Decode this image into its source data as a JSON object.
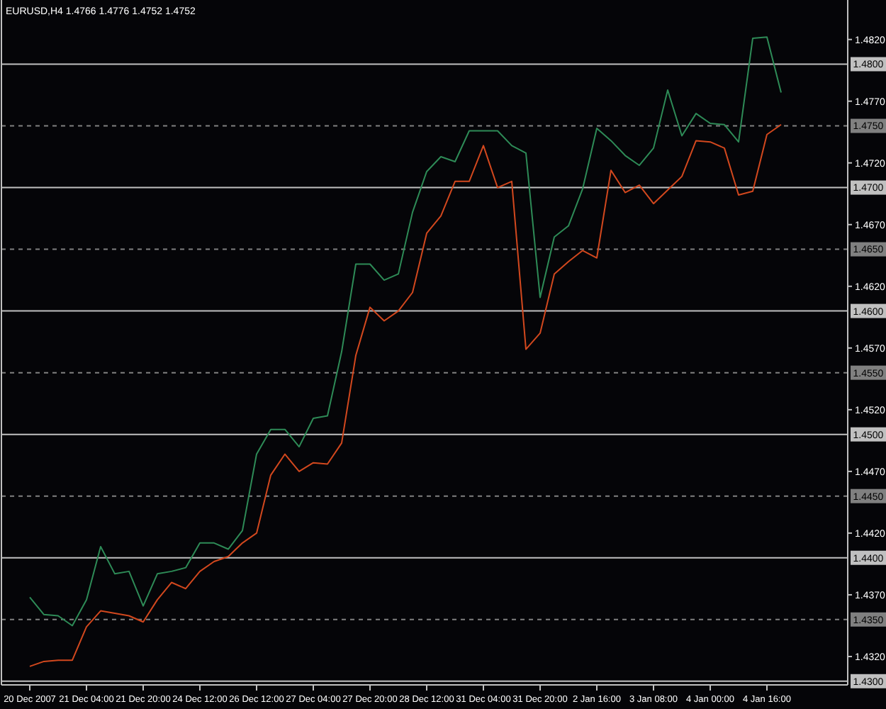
{
  "chart_data": {
    "type": "line",
    "title": "EURUSD,H4 1.4766 1.4776 1.4752 1.4752",
    "categories": [
      "20 Dec 2007",
      null,
      null,
      null,
      "21 Dec 04:00",
      null,
      null,
      null,
      "21 Dec 20:00",
      null,
      null,
      null,
      "24 Dec 12:00",
      null,
      null,
      null,
      "26 Dec 12:00",
      null,
      null,
      null,
      "27 Dec 04:00",
      null,
      null,
      null,
      "27 Dec 20:00",
      null,
      null,
      null,
      "28 Dec 12:00",
      null,
      null,
      null,
      "31 Dec 04:00",
      null,
      null,
      null,
      "31 Dec 20:00",
      null,
      null,
      null,
      "2 Jan 16:00",
      null,
      null,
      null,
      "3 Jan 08:00",
      null,
      null,
      null,
      "4 Jan 00:00",
      null,
      null,
      null,
      "4 Jan 16:00",
      null
    ],
    "series": [
      {
        "color": "#2e8b57",
        "values": [
          1.4368,
          1.4354,
          1.4353,
          1.4345,
          1.4366,
          1.4409,
          1.4387,
          1.4389,
          1.4361,
          1.4387,
          1.4389,
          1.4392,
          1.4412,
          1.4412,
          1.4407,
          1.4422,
          1.4484,
          1.4504,
          1.4504,
          1.449,
          1.4513,
          1.4515,
          1.4567,
          1.4638,
          1.4638,
          1.4625,
          1.463,
          1.468,
          1.4713,
          1.4725,
          1.4721,
          1.4746,
          1.4746,
          1.4746,
          1.4734,
          1.4728,
          1.4611,
          1.466,
          1.4669,
          1.4699,
          1.4748,
          1.4738,
          1.4726,
          1.4718,
          1.4732,
          1.4779,
          1.4742,
          1.476,
          1.4752,
          1.4751,
          1.4737,
          1.4821,
          1.4822,
          1.4777
        ]
      },
      {
        "color": "#d2481e",
        "values": [
          1.4312,
          1.4316,
          1.4317,
          1.4317,
          1.4344,
          1.4357,
          1.4355,
          1.4353,
          1.4348,
          1.4366,
          1.438,
          1.4375,
          1.4389,
          1.4397,
          1.4401,
          1.4412,
          1.442,
          1.4467,
          1.4484,
          1.447,
          1.4477,
          1.4476,
          1.4493,
          1.4564,
          1.4603,
          1.4592,
          1.46,
          1.4615,
          1.4663,
          1.4677,
          1.4705,
          1.4705,
          1.4734,
          1.47,
          1.4705,
          1.4569,
          1.4582,
          1.463,
          1.464,
          1.4649,
          1.4643,
          1.4714,
          1.4696,
          1.4702,
          1.4687,
          1.4698,
          1.4709,
          1.4738,
          1.4737,
          1.4732,
          1.4694,
          1.4697,
          1.4743,
          1.4751
        ]
      }
    ],
    "ylim": [
      1.4297,
      1.4852
    ],
    "yticks": [
      {
        "value": 1.432,
        "label": "1.4320"
      },
      {
        "value": 1.437,
        "label": "1.4370"
      },
      {
        "value": 1.442,
        "label": "1.4420"
      },
      {
        "value": 1.447,
        "label": "1.4470"
      },
      {
        "value": 1.452,
        "label": "1.4520"
      },
      {
        "value": 1.457,
        "label": "1.4570"
      },
      {
        "value": 1.462,
        "label": "1.4620"
      },
      {
        "value": 1.467,
        "label": "1.4670"
      },
      {
        "value": 1.472,
        "label": "1.4720"
      },
      {
        "value": 1.477,
        "label": "1.4770"
      },
      {
        "value": 1.482,
        "label": "1.4820"
      }
    ],
    "ref_lines": [
      {
        "axis": "y",
        "value": 1.48,
        "label": "1.4800",
        "color": "#c0c0c0",
        "line_style": "solid"
      },
      {
        "axis": "y",
        "value": 1.475,
        "label": "1.4750",
        "color": "#808080",
        "line_style": "dashed"
      },
      {
        "axis": "y",
        "value": 1.47,
        "label": "1.4700",
        "color": "#c0c0c0",
        "line_style": "solid"
      },
      {
        "axis": "y",
        "value": 1.465,
        "label": "1.4650",
        "color": "#808080",
        "line_style": "dashed"
      },
      {
        "axis": "y",
        "value": 1.46,
        "label": "1.4600",
        "color": "#c0c0c0",
        "line_style": "solid"
      },
      {
        "axis": "y",
        "value": 1.455,
        "label": "1.4550",
        "color": "#808080",
        "line_style": "dashed"
      },
      {
        "axis": "y",
        "value": 1.45,
        "label": "1.4500",
        "color": "#c0c0c0",
        "line_style": "solid"
      },
      {
        "axis": "y",
        "value": 1.445,
        "label": "1.4450",
        "color": "#808080",
        "line_style": "dashed"
      },
      {
        "axis": "y",
        "value": 1.44,
        "label": "1.4400",
        "color": "#c0c0c0",
        "line_style": "solid"
      },
      {
        "axis": "y",
        "value": 1.435,
        "label": "1.4350",
        "color": "#808080",
        "line_style": "dashed"
      },
      {
        "axis": "y",
        "value": 1.43,
        "label": "1.4300",
        "color": "#c0c0c0",
        "line_style": "solid"
      }
    ],
    "line_style": "solid",
    "marker": "none",
    "grid": false
  }
}
